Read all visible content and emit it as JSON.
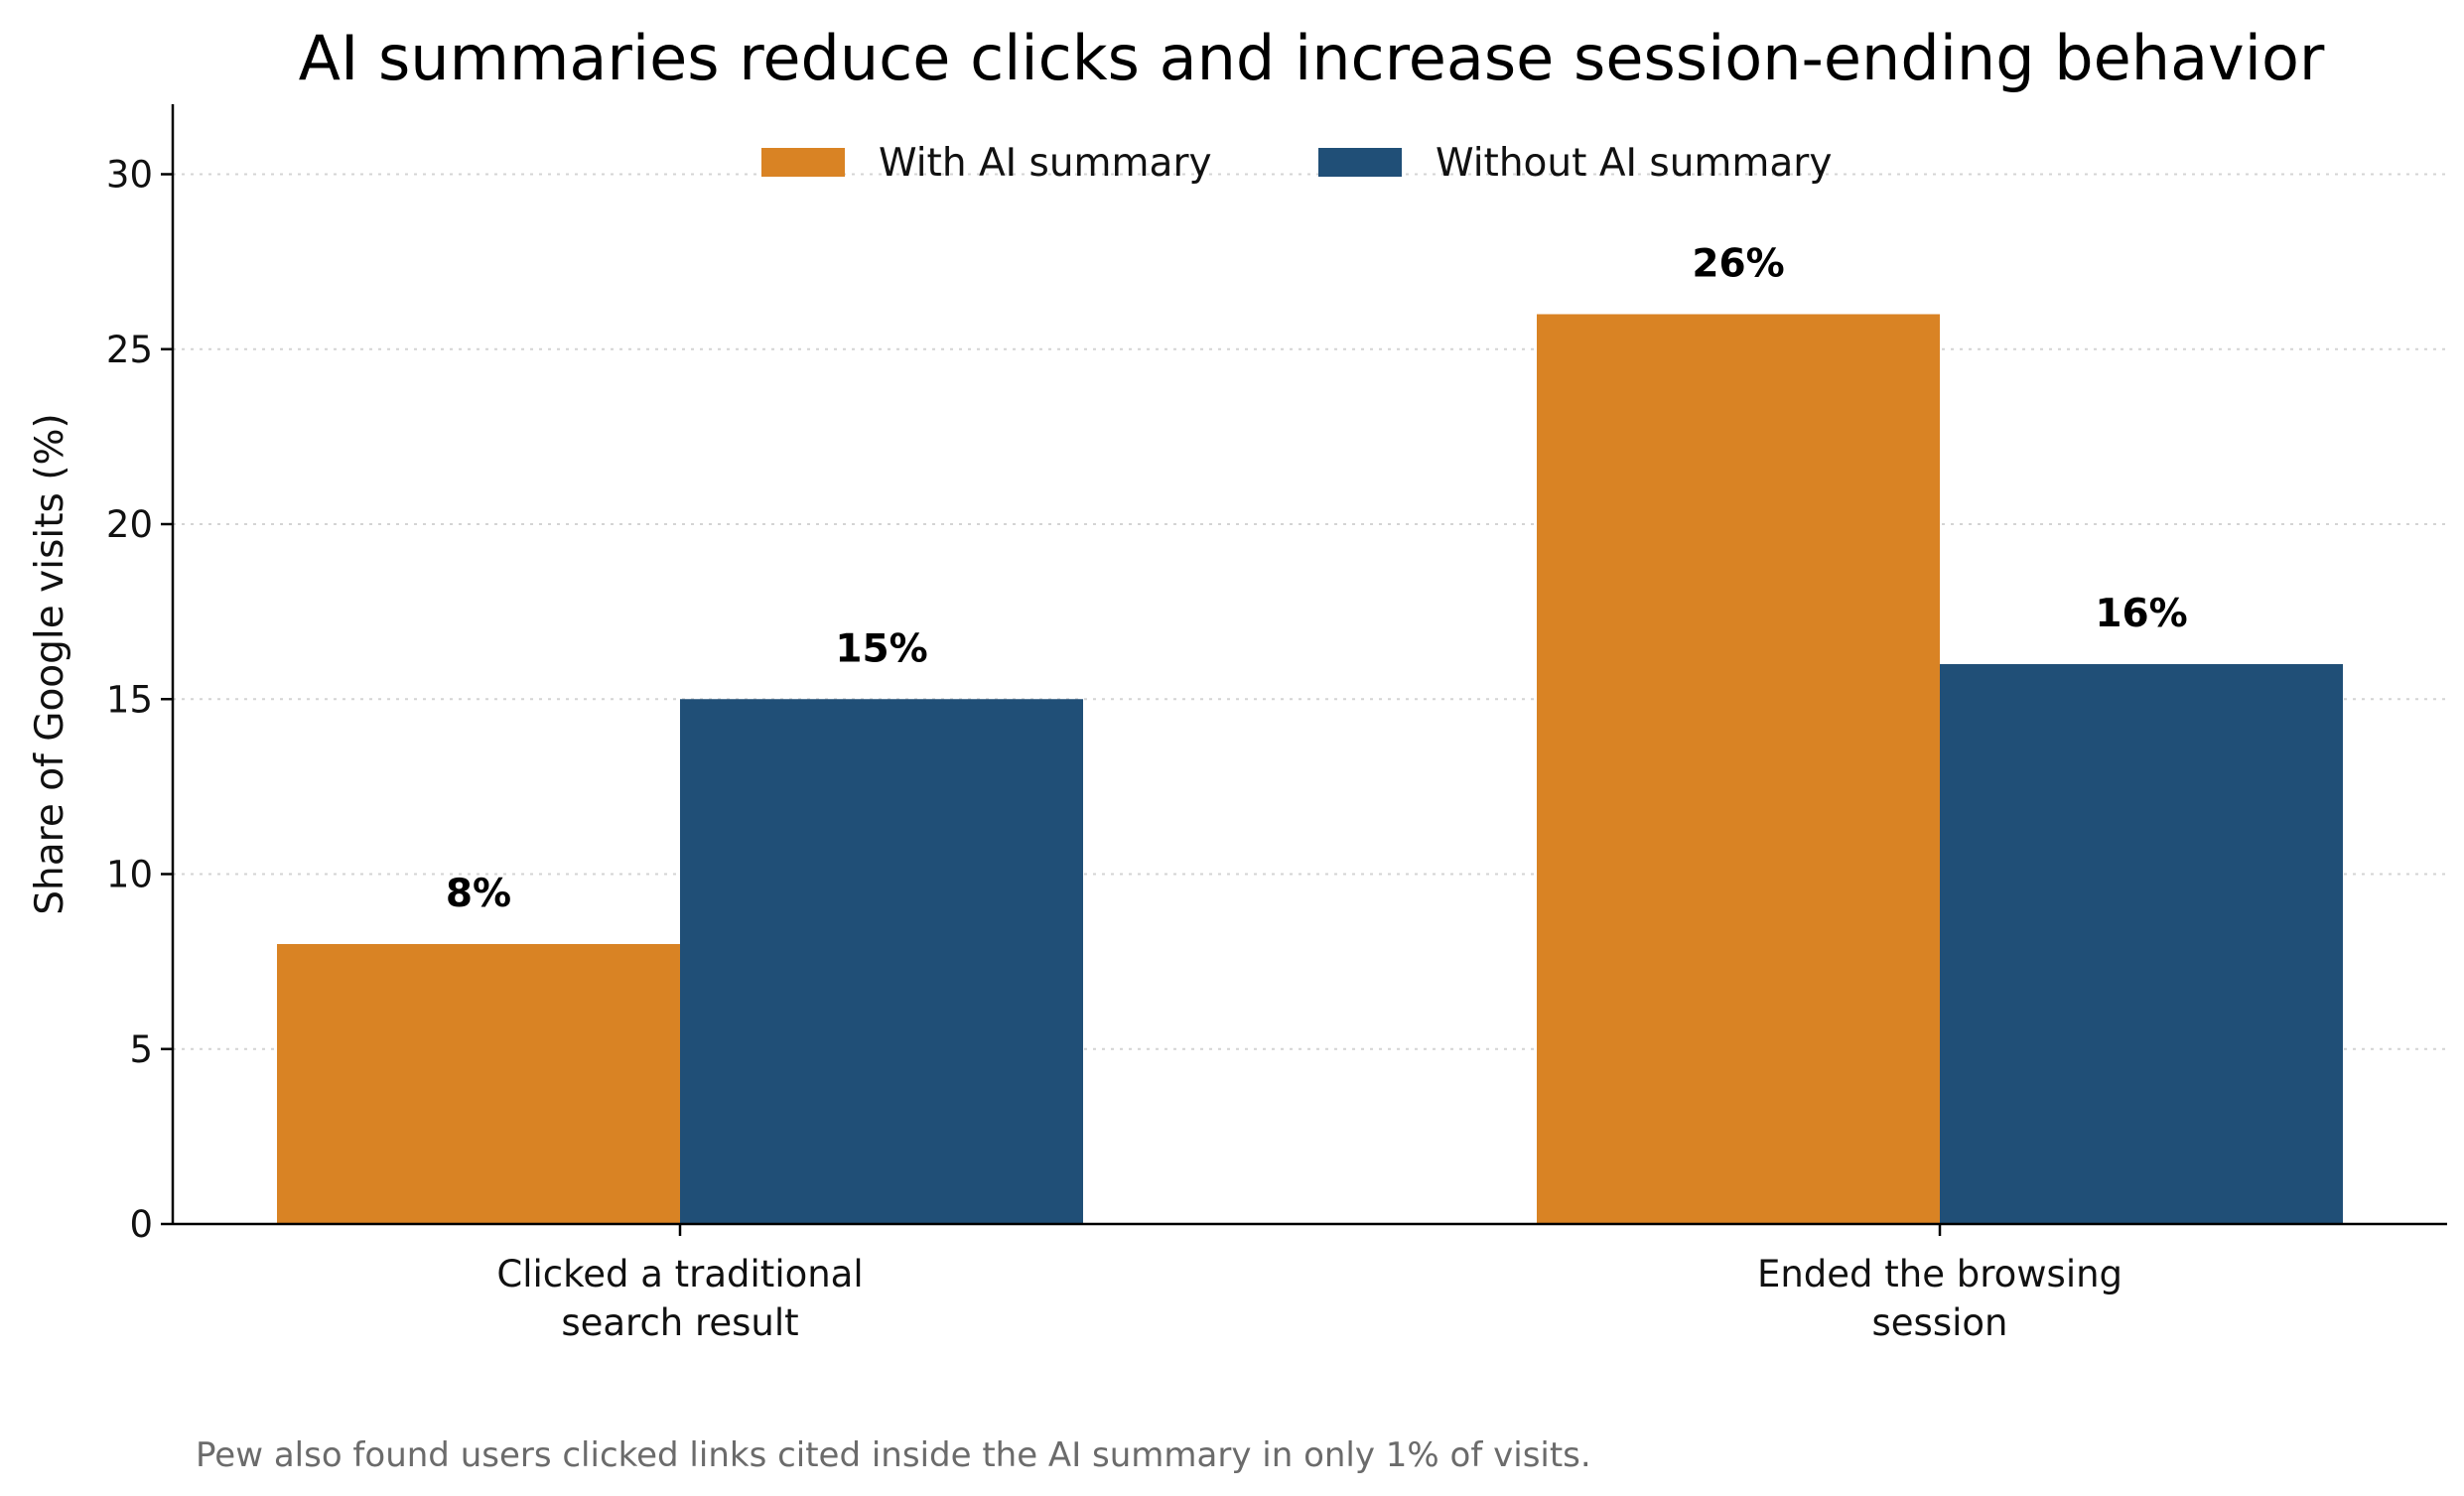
{
  "chart_data": {
    "type": "bar",
    "title": "AI summaries reduce clicks and increase session-ending behavior",
    "xlabel": "",
    "ylabel": "Share of Google visits (%)",
    "ylim": [
      0,
      32
    ],
    "yticks": [
      0,
      5,
      10,
      15,
      20,
      25,
      30
    ],
    "grid": "horizontal-dotted",
    "legend_position": "top-center",
    "categories": [
      [
        "Clicked a traditional",
        "search result"
      ],
      [
        "Ended the browsing",
        "session"
      ]
    ],
    "series": [
      {
        "name": "With AI summary",
        "color": "#D98324",
        "values": [
          8,
          26
        ],
        "labels": [
          "8%",
          "26%"
        ]
      },
      {
        "name": "Without AI summary",
        "color": "#204F77",
        "values": [
          15,
          16
        ],
        "labels": [
          "15%",
          "16%"
        ]
      }
    ],
    "footnote": "Pew also found users clicked links cited inside the AI summary in only 1% of visits."
  }
}
